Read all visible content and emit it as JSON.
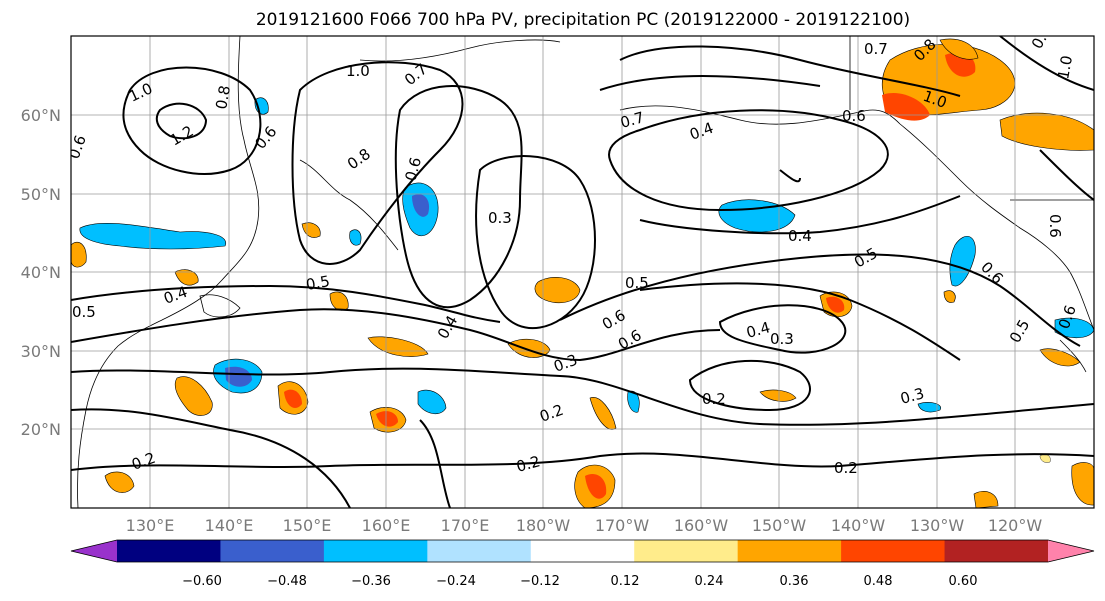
{
  "title": "2019121600 F066 700 hPa PV, precipitation PC (2019122000 - 2019122100)",
  "map": {
    "lat_labels": [
      "60°N",
      "50°N",
      "40°N",
      "30°N",
      "20°N"
    ],
    "lon_labels": [
      "130°E",
      "140°E",
      "150°E",
      "160°E",
      "170°E",
      "180°W",
      "170°W",
      "160°W",
      "150°W",
      "140°W",
      "130°W",
      "120°W"
    ],
    "gridlines": true,
    "projection": "equirectangular"
  },
  "contour_labels": [
    "1.0",
    "1.0",
    "1.2",
    "0.8",
    "0.6",
    "0.6",
    "0.8",
    "0.7",
    "0.6",
    "0.3",
    "0.7",
    "0.4",
    "0.8",
    "1.0",
    "0.6",
    "0.7",
    "1.0",
    "0.8",
    "0.4",
    "0.5",
    "0.5",
    "0.5",
    "0.4",
    "0.5",
    "0.6",
    "0.4",
    "0.3",
    "0.6",
    "0.4",
    "0.3",
    "0.2",
    "0.2",
    "0.2",
    "0.2",
    "0.3",
    "0.2",
    "0.6",
    "0.5",
    "0.6",
    "0.6"
  ],
  "colorbar": {
    "tick_labels": [
      "−0.60",
      "−0.48",
      "−0.36",
      "−0.24",
      "−0.12",
      "0.12",
      "0.24",
      "0.36",
      "0.48",
      "0.60"
    ],
    "colors": [
      "#9932cc",
      "#000080",
      "#3a5fcd",
      "#00bfff",
      "#b0e2ff",
      "#ffffff",
      "#ffec8b",
      "#ffa500",
      "#ff4500",
      "#b22222",
      "#ff82ab"
    ],
    "extend": "both"
  }
}
